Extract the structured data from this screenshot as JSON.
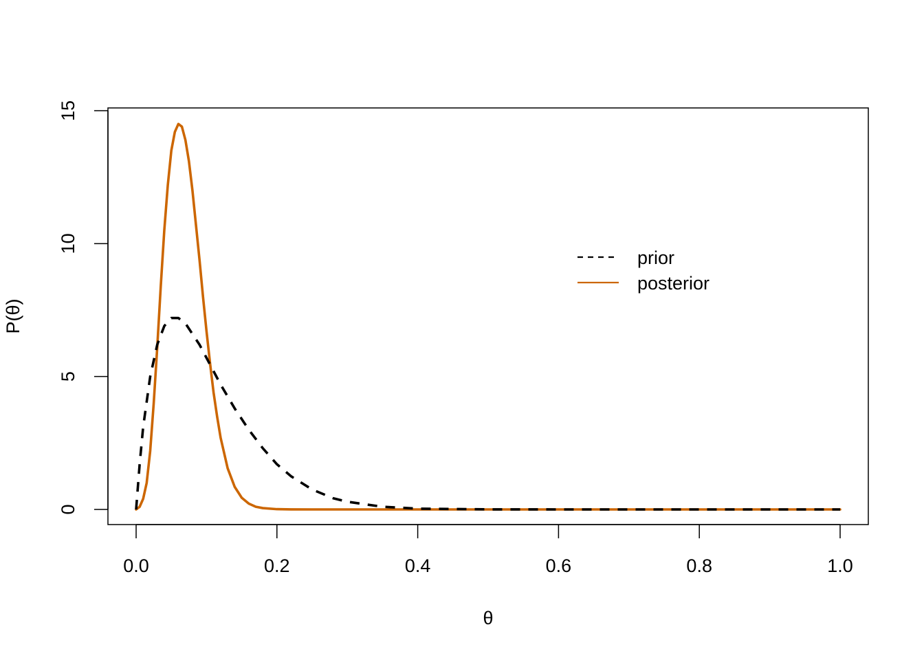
{
  "chart_data": {
    "type": "line",
    "title": "",
    "xlabel": "θ",
    "ylabel": "P(θ)",
    "xlim": [
      0,
      1
    ],
    "ylim": [
      0,
      15
    ],
    "x_ticks": [
      0,
      0.2,
      0.4,
      0.6,
      0.8,
      1
    ],
    "x_tick_labels": [
      "0.0",
      "0.2",
      "0.4",
      "0.6",
      "0.8",
      "1.0"
    ],
    "y_ticks": [
      0,
      5,
      10,
      15
    ],
    "y_tick_labels": [
      "0",
      "5",
      "10",
      "15"
    ],
    "grid": false,
    "legend_position": "top-right",
    "series": [
      {
        "name": "prior",
        "color": "#000000",
        "style": "dashed",
        "x": [
          0,
          0.005,
          0.01,
          0.02,
          0.03,
          0.04,
          0.05,
          0.06,
          0.07,
          0.08,
          0.09,
          0.1,
          0.12,
          0.14,
          0.16,
          0.18,
          0.2,
          0.22,
          0.25,
          0.28,
          0.3,
          0.35,
          0.4,
          0.5,
          0.6,
          0.7,
          0.8,
          0.9,
          1.0
        ],
        "y": [
          0,
          1.7,
          3.1,
          5.0,
          6.2,
          6.9,
          7.2,
          7.2,
          7.0,
          6.6,
          6.2,
          5.7,
          4.7,
          3.8,
          3.0,
          2.3,
          1.7,
          1.25,
          0.75,
          0.42,
          0.29,
          0.1,
          0.03,
          0.003,
          0,
          0,
          0,
          0,
          0
        ]
      },
      {
        "name": "posterior",
        "color": "#cc6600",
        "style": "solid",
        "x": [
          0,
          0.005,
          0.01,
          0.015,
          0.02,
          0.025,
          0.03,
          0.035,
          0.04,
          0.045,
          0.05,
          0.055,
          0.06,
          0.065,
          0.07,
          0.075,
          0.08,
          0.085,
          0.09,
          0.095,
          0.1,
          0.105,
          0.11,
          0.115,
          0.12,
          0.13,
          0.14,
          0.15,
          0.16,
          0.17,
          0.18,
          0.2,
          0.22,
          0.25,
          0.3,
          0.4,
          0.5,
          0.6,
          0.7,
          0.8,
          0.9,
          1.0
        ],
        "y": [
          0,
          0.1,
          0.4,
          1.0,
          2.2,
          4.0,
          6.1,
          8.4,
          10.5,
          12.2,
          13.5,
          14.2,
          14.5,
          14.4,
          13.9,
          13.1,
          12.0,
          10.7,
          9.4,
          8.0,
          6.7,
          5.5,
          4.4,
          3.5,
          2.7,
          1.55,
          0.85,
          0.44,
          0.22,
          0.1,
          0.05,
          0.01,
          0.002,
          0,
          0,
          0,
          0,
          0,
          0,
          0,
          0,
          0
        ]
      }
    ]
  }
}
